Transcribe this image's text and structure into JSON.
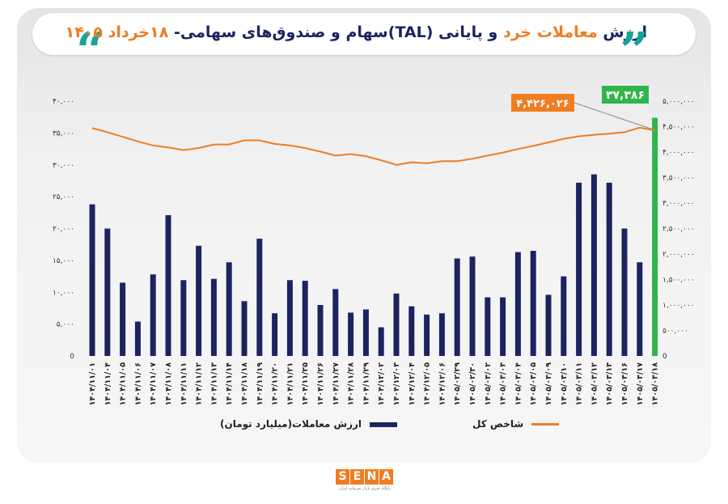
{
  "title": {
    "part1": "ارزش ",
    "part2": "معاملات خرد",
    "part3": " و پایانی (TAL)سهام و صندوق‌های سهامی- ",
    "part4": "۱۸خرداد ۱۴۰۵"
  },
  "logo": {
    "letters": [
      "S",
      "E",
      "N",
      "A"
    ],
    "subtitle": "پایگاه خبری بازار سرمایه ایران"
  },
  "colors": {
    "bar": "#1b2460",
    "line": "#ef7d22",
    "highlight": "#2fb54a",
    "accent": "#16a39a"
  },
  "chart_data": {
    "type": "bar+line",
    "categories": [
      "۱۴۰۴/۱۱/۰۱",
      "۱۴۰۴/۱۱/۰۴",
      "۱۴۰۴/۱۱/۰۵",
      "۱۴۰۴/۱۱/۰۶",
      "۱۴۰۴/۱۱/۰۷",
      "۱۴۰۴/۱۱/۰۸",
      "۱۴۰۴/۱۱/۱۱",
      "۱۴۰۴/۱۱/۱۲",
      "۱۴۰۴/۱۱/۱۳",
      "۱۴۰۴/۱۱/۱۴",
      "۱۴۰۴/۱۱/۱۸",
      "۱۴۰۴/۱۱/۱۹",
      "۱۴۰۴/۱۱/۲۰",
      "۱۴۰۴/۱۱/۲۱",
      "۱۴۰۴/۱۱/۲۵",
      "۱۴۰۴/۱۱/۲۶",
      "۱۴۰۴/۱۱/۲۷",
      "۱۴۰۴/۱۱/۲۸",
      "۱۴۰۴/۱۱/۲۹",
      "۱۴۰۴/۱۲/۰۲",
      "۱۴۰۴/۱۲/۰۳",
      "۱۴۰۴/۱۲/۰۴",
      "۱۴۰۴/۱۲/۰۵",
      "۱۴۰۴/۱۲/۰۶",
      "۱۴۰۵/۰۲/۲۹",
      "۱۴۰۵/۰۲/۳۰",
      "۱۴۰۵/۰۳/۰۲",
      "۱۴۰۵/۰۳/۰۳",
      "۱۴۰۵/۰۳/۰۴",
      "۱۴۰۵/۰۳/۰۵",
      "۱۴۰۵/۰۳/۰۹",
      "۱۴۰۵/۰۳/۱۰",
      "۱۴۰۵/۰۳/۱۱",
      "۱۴۰۵/۰۳/۱۲",
      "۱۴۰۵/۰۳/۱۳",
      "۱۴۰۵/۰۳/۱۶",
      "۱۴۰۵/۰۳/۱۷",
      "۱۴۰۵/۰۳/۱۸"
    ],
    "series": [
      {
        "name": "ارزش معاملات(میلیارد تومان)",
        "axis": "left",
        "type": "bar",
        "values": [
          23800,
          20000,
          11500,
          5400,
          12800,
          22100,
          11900,
          17300,
          12100,
          14700,
          8600,
          18400,
          6700,
          11900,
          11800,
          8000,
          10500,
          6800,
          7300,
          4500,
          9800,
          7800,
          6500,
          6700,
          15300,
          15600,
          9200,
          9200,
          16300,
          16500,
          9600,
          12500,
          27200,
          28500,
          27200,
          20000,
          14700,
          37386
        ]
      },
      {
        "name": "شاخص کل",
        "axis": "right",
        "type": "line",
        "values": [
          4470000,
          4390000,
          4300000,
          4210000,
          4130000,
          4090000,
          4040000,
          4080000,
          4150000,
          4150000,
          4230000,
          4230000,
          4160000,
          4130000,
          4080000,
          4010000,
          3930000,
          3960000,
          3920000,
          3840000,
          3750000,
          3800000,
          3780000,
          3820000,
          3820000,
          3870000,
          3930000,
          3990000,
          4060000,
          4120000,
          4190000,
          4260000,
          4310000,
          4340000,
          4360000,
          4390000,
          4480000,
          4426026
        ]
      }
    ],
    "y_left": {
      "min": 0,
      "max": 40000,
      "ticks": [
        "0",
        "۵,۰۰۰",
        "۱۰,۰۰۰",
        "۱۵,۰۰۰",
        "۲۰,۰۰۰",
        "۲۵,۰۰۰",
        "۳۰,۰۰۰",
        "۳۵,۰۰۰",
        "۴۰,۰۰۰"
      ]
    },
    "y_right": {
      "min": 0,
      "max": 5000000,
      "ticks": [
        "0",
        "۵۰۰,۰۰۰",
        "۱,۰۰۰,۰۰۰",
        "۱,۵۰۰,۰۰۰",
        "۲,۰۰۰,۰۰۰",
        "۲,۵۰۰,۰۰۰",
        "۳,۰۰۰,۰۰۰",
        "۳,۵۰۰,۰۰۰",
        "۴,۰۰۰,۰۰۰",
        "۴,۵۰۰,۰۰۰",
        "۵,۰۰۰,۰۰۰"
      ]
    },
    "annotations": {
      "last_bar": "۳۷,۳۸۶",
      "last_index": "۴,۴۲۶,۰۲۶"
    },
    "grid": false,
    "legend_position": "bottom"
  }
}
